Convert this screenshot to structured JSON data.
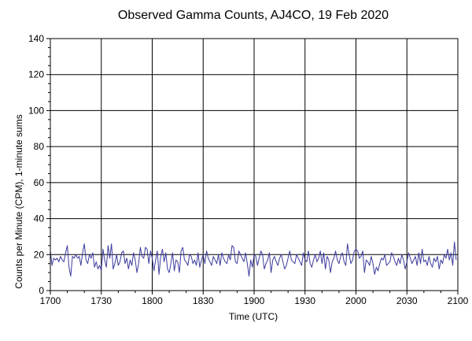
{
  "chart_data": {
    "type": "line",
    "title": "Observed Gamma Counts, AJ4CO, 19 Feb 2020",
    "xlabel": "Time (UTC)",
    "ylabel": "Counts per Minute (CPM), 1-minute sums",
    "x_ticks": [
      "1700",
      "1730",
      "1800",
      "1830",
      "1900",
      "1930",
      "2000",
      "2030",
      "2100"
    ],
    "y_ticks": [
      "0",
      "20",
      "40",
      "60",
      "80",
      "100",
      "120",
      "140"
    ],
    "xlim_minutes": [
      0,
      240
    ],
    "ylim": [
      0,
      140
    ],
    "grid": true,
    "series": [
      {
        "color": "#3b3b9e",
        "x_start": "1700",
        "x_step_minutes": 1,
        "values": [
          22,
          14,
          18,
          17,
          18,
          16,
          19,
          17,
          16,
          21,
          25,
          13,
          8,
          19,
          18,
          20,
          18,
          19,
          14,
          21,
          26,
          17,
          15,
          20,
          18,
          21,
          13,
          16,
          12,
          14,
          11,
          23,
          17,
          13,
          25,
          18,
          26,
          12,
          15,
          20,
          14,
          16,
          21,
          22,
          15,
          18,
          12,
          17,
          14,
          21,
          17,
          10,
          15,
          24,
          19,
          18,
          24,
          23,
          15,
          22,
          18,
          11,
          17,
          22,
          9,
          19,
          23,
          16,
          21,
          12,
          10,
          15,
          21,
          11,
          17,
          16,
          10,
          22,
          24,
          17,
          16,
          14,
          20,
          19,
          15,
          17,
          14,
          21,
          13,
          17,
          20,
          15,
          22,
          18,
          16,
          14,
          19,
          17,
          15,
          20,
          14,
          21,
          18,
          16,
          15,
          20,
          17,
          25,
          24,
          16,
          15,
          22,
          20,
          18,
          16,
          21,
          15,
          8,
          17,
          13,
          20,
          19,
          14,
          18,
          22,
          20,
          12,
          15,
          17,
          21,
          10,
          17,
          19,
          16,
          14,
          18,
          20,
          16,
          12,
          14,
          18,
          22,
          17,
          16,
          15,
          20,
          18,
          16,
          14,
          21,
          17,
          16,
          22,
          15,
          13,
          17,
          20,
          16,
          18,
          22,
          15,
          21,
          12,
          19,
          17,
          10,
          16,
          18,
          22,
          17,
          15,
          19,
          21,
          16,
          14,
          26,
          20,
          15,
          17,
          22,
          23,
          22,
          18,
          19,
          22,
          10,
          17,
          16,
          14,
          19,
          15,
          9,
          13,
          11,
          15,
          18,
          17,
          20,
          14,
          15,
          16,
          21,
          19,
          16,
          14,
          18,
          15,
          20,
          17,
          12,
          16,
          21,
          18,
          15,
          17,
          19,
          14,
          21,
          15,
          23,
          16,
          17,
          14,
          19,
          15,
          13,
          18,
          16,
          19,
          12,
          17,
          15,
          20,
          18,
          23,
          17,
          21,
          14,
          27,
          17
        ]
      }
    ]
  }
}
